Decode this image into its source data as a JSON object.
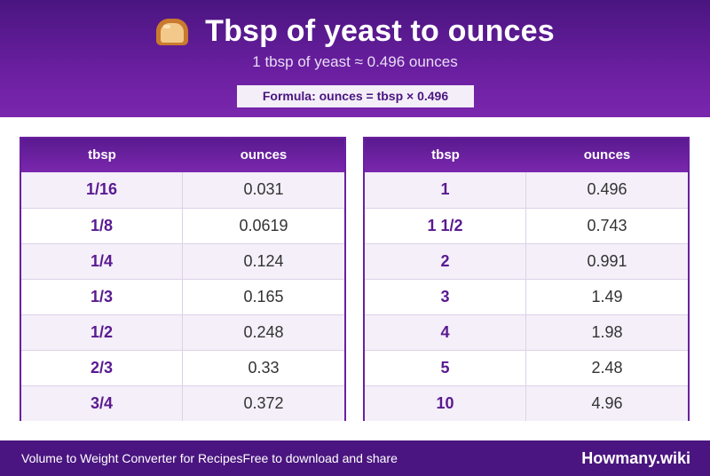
{
  "header": {
    "icon": "bread-icon",
    "title": "Tbsp of yeast to ounces",
    "subtitle": "1 tbsp of yeast ≈ 0.496 ounces",
    "formula": "Formula: ounces = tbsp × 0.496"
  },
  "tables": [
    {
      "headers": [
        "tbsp",
        "ounces"
      ],
      "rows": [
        [
          "1/16",
          "0.031"
        ],
        [
          "1/8",
          "0.0619"
        ],
        [
          "1/4",
          "0.124"
        ],
        [
          "1/3",
          "0.165"
        ],
        [
          "1/2",
          "0.248"
        ],
        [
          "2/3",
          "0.33"
        ],
        [
          "3/4",
          "0.372"
        ]
      ]
    },
    {
      "headers": [
        "tbsp",
        "ounces"
      ],
      "rows": [
        [
          "1",
          "0.496"
        ],
        [
          "1 1/2",
          "0.743"
        ],
        [
          "2",
          "0.991"
        ],
        [
          "3",
          "1.49"
        ],
        [
          "4",
          "1.98"
        ],
        [
          "5",
          "2.48"
        ],
        [
          "10",
          "4.96"
        ]
      ]
    }
  ],
  "footer": {
    "left_text": "Volume to Weight Converter for Recipes",
    "left_text_2": "Free to download and share",
    "brand": "Howmany.wiki"
  },
  "colors": {
    "primary": "#6a1fa0",
    "dark": "#4a1580",
    "row_alt": "#f4eff9"
  }
}
